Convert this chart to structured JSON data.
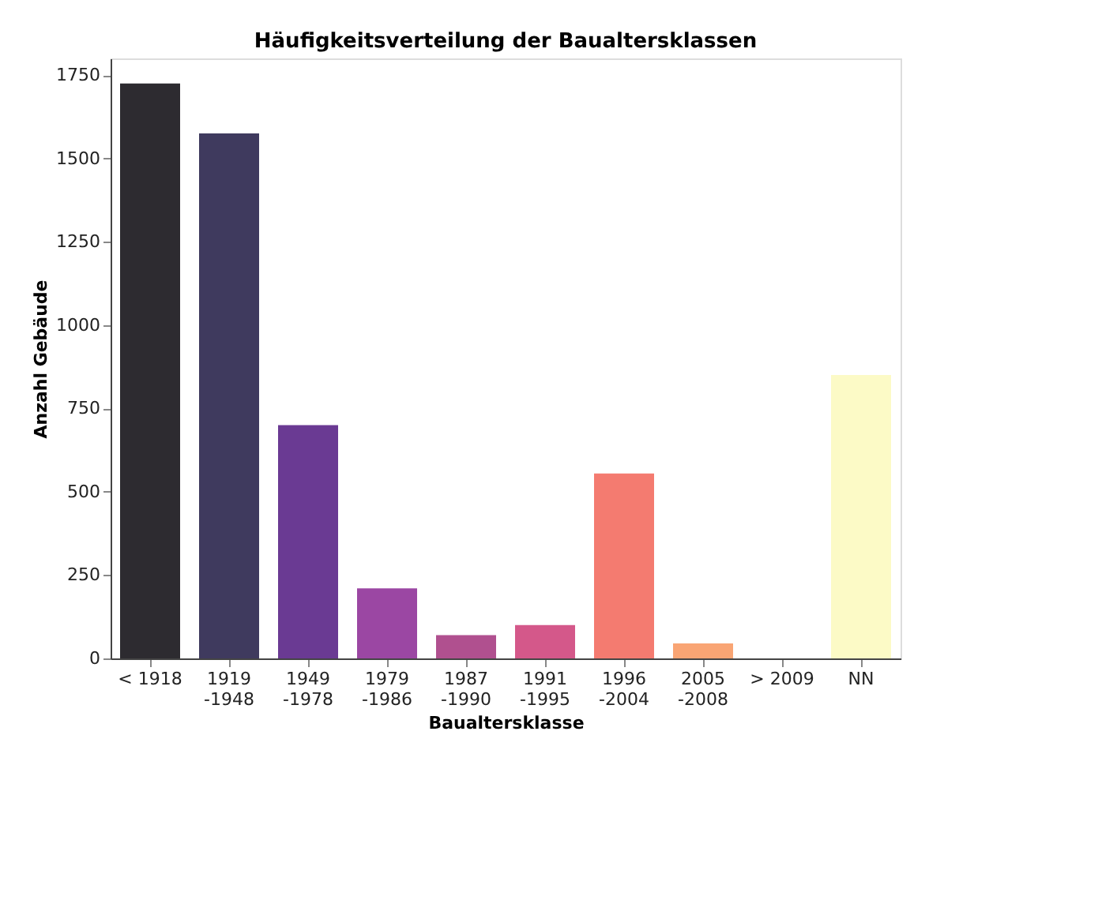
{
  "chart_data": {
    "type": "bar",
    "title": "Häufigkeitsverteilung der Baualtersklassen",
    "xlabel": "Baualtersklasse",
    "ylabel": "Anzahl Gebäude",
    "categories": [
      "< 1918",
      "1919\n-1948",
      "1949\n-1978",
      "1979\n-1986",
      "1987\n-1990",
      "1991\n-1995",
      "1996\n-2004",
      "2005\n-2008",
      "> 2009",
      "NN"
    ],
    "values": [
      1725,
      1575,
      700,
      210,
      70,
      100,
      555,
      45,
      null,
      850
    ],
    "colors": [
      "#2d2b30",
      "#3f3a5e",
      "#6a3a93",
      "#9b47a3",
      "#b0508f",
      "#d4588a",
      "#f47b70",
      "#f9a574",
      "#fdf3dc",
      "#fcfac6"
    ],
    "ylim": [
      0,
      1800
    ],
    "yticks": [
      0,
      250,
      500,
      750,
      1000,
      1250,
      1500,
      1750
    ],
    "grid": false
  }
}
